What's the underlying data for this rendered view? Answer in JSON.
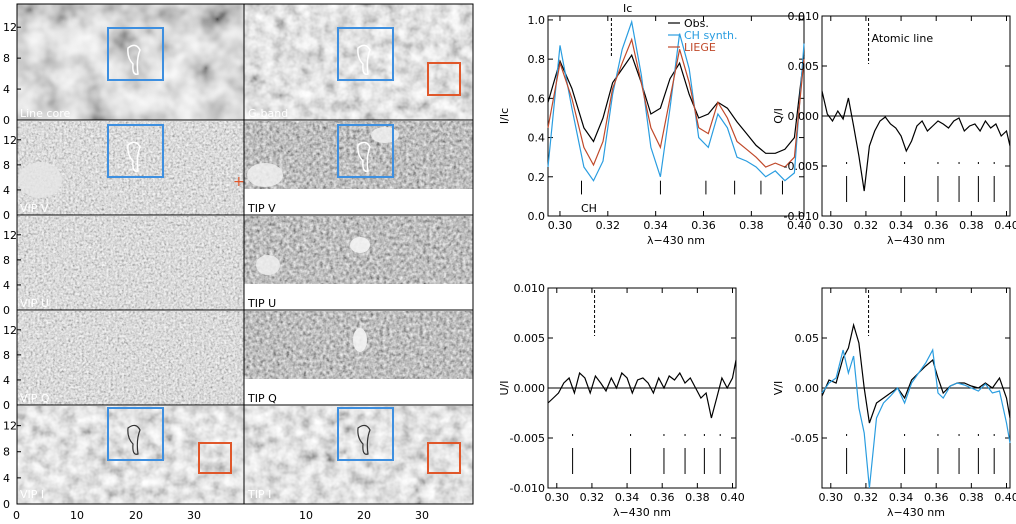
{
  "panels": {
    "left_column": [
      "Line core",
      "VIP V",
      "VIP U",
      "VIP Q",
      "VIP I"
    ],
    "right_column": [
      "G-band",
      "TIP V",
      "TIP U",
      "TIP Q",
      "TIP I"
    ],
    "y_ticks": [
      "0",
      "4",
      "8",
      "12"
    ],
    "x_ticks": [
      "0",
      "10",
      "20",
      "30",
      "10",
      "20",
      "30"
    ]
  },
  "colors": {
    "blue_box": "#3d8fe0",
    "red_box": "#e0572a",
    "obs": "#000000",
    "ch_synth": "#2a9de0",
    "liege": "#c0492a"
  },
  "chart_data": [
    {
      "type": "line",
      "id": "stokes-I",
      "xlabel": "λ−430 nm",
      "ylabel": "I/Ic",
      "xlim": [
        0.295,
        0.402
      ],
      "ylim": [
        0.0,
        1.02
      ],
      "x_ticks": [
        "0.30",
        "0.32",
        "0.34",
        "0.36",
        "0.38",
        "0.40"
      ],
      "y_ticks": [
        "0.0",
        "0.2",
        "0.4",
        "0.6",
        "0.8",
        "1.0"
      ],
      "top_marker": "Ic",
      "annotations": [
        "CH"
      ],
      "legend": [
        "Obs.",
        "CH synth.",
        "LIEGE"
      ],
      "legend_position": "top-right",
      "line_marks_x": [
        0.309,
        0.342,
        0.361,
        0.373,
        0.384,
        0.393
      ],
      "series": [
        {
          "name": "Obs.",
          "x": [
            0.295,
            0.3,
            0.305,
            0.31,
            0.314,
            0.318,
            0.322,
            0.326,
            0.33,
            0.334,
            0.338,
            0.342,
            0.346,
            0.35,
            0.354,
            0.358,
            0.362,
            0.366,
            0.37,
            0.374,
            0.378,
            0.382,
            0.386,
            0.39,
            0.394,
            0.398,
            0.402
          ],
          "y": [
            0.58,
            0.79,
            0.65,
            0.45,
            0.38,
            0.5,
            0.68,
            0.75,
            0.82,
            0.68,
            0.52,
            0.55,
            0.7,
            0.78,
            0.62,
            0.5,
            0.52,
            0.58,
            0.55,
            0.48,
            0.42,
            0.36,
            0.32,
            0.32,
            0.34,
            0.4,
            0.82
          ]
        },
        {
          "name": "CH synth.",
          "x": [
            0.295,
            0.3,
            0.305,
            0.31,
            0.314,
            0.318,
            0.322,
            0.326,
            0.33,
            0.334,
            0.338,
            0.342,
            0.346,
            0.35,
            0.354,
            0.358,
            0.362,
            0.366,
            0.37,
            0.374,
            0.378,
            0.382,
            0.386,
            0.39,
            0.394,
            0.398,
            0.402
          ],
          "y": [
            0.25,
            0.87,
            0.55,
            0.25,
            0.18,
            0.28,
            0.62,
            0.85,
            0.99,
            0.72,
            0.35,
            0.2,
            0.55,
            0.93,
            0.75,
            0.4,
            0.35,
            0.52,
            0.45,
            0.3,
            0.28,
            0.25,
            0.2,
            0.23,
            0.18,
            0.22,
            0.88
          ]
        },
        {
          "name": "LIEGE",
          "x": [
            0.295,
            0.3,
            0.305,
            0.31,
            0.314,
            0.318,
            0.322,
            0.326,
            0.33,
            0.334,
            0.338,
            0.342,
            0.346,
            0.35,
            0.354,
            0.358,
            0.362,
            0.366,
            0.37,
            0.374,
            0.378,
            0.382,
            0.386,
            0.39,
            0.394,
            0.398,
            0.402
          ],
          "y": [
            0.45,
            0.78,
            0.6,
            0.35,
            0.26,
            0.38,
            0.65,
            0.78,
            0.9,
            0.68,
            0.45,
            0.35,
            0.6,
            0.85,
            0.68,
            0.45,
            0.42,
            0.58,
            0.5,
            0.38,
            0.34,
            0.3,
            0.25,
            0.27,
            0.25,
            0.3,
            0.8
          ]
        }
      ]
    },
    {
      "type": "line",
      "id": "stokes-Q",
      "xlabel": "λ−430 nm",
      "ylabel": "Q/I",
      "xlim": [
        0.295,
        0.402
      ],
      "ylim": [
        -0.01,
        0.01
      ],
      "x_ticks": [
        "0.30",
        "0.32",
        "0.34",
        "0.36",
        "0.38",
        "0.40"
      ],
      "y_ticks": [
        "-0.010",
        "-0.005",
        "0.000",
        "0.005",
        "0.010"
      ],
      "annotations": [
        "Atomic line"
      ],
      "line_marks_x": [
        0.309,
        0.342,
        0.361,
        0.373,
        0.384,
        0.393
      ],
      "series": [
        {
          "name": "Obs.",
          "x": [
            0.295,
            0.298,
            0.301,
            0.304,
            0.307,
            0.31,
            0.313,
            0.316,
            0.319,
            0.322,
            0.325,
            0.328,
            0.331,
            0.334,
            0.337,
            0.34,
            0.343,
            0.346,
            0.349,
            0.352,
            0.355,
            0.358,
            0.361,
            0.364,
            0.367,
            0.37,
            0.373,
            0.376,
            0.379,
            0.382,
            0.385,
            0.388,
            0.391,
            0.394,
            0.397,
            0.4,
            0.402
          ],
          "y": [
            0.0025,
            0.0002,
            -0.0005,
            0.0005,
            -0.0003,
            0.0018,
            -0.001,
            -0.004,
            -0.0075,
            -0.003,
            -0.0015,
            -0.0005,
            -0.0001,
            -0.0008,
            -0.0012,
            -0.002,
            -0.0035,
            -0.0025,
            -0.001,
            -0.0005,
            -0.0015,
            -0.001,
            -0.0005,
            -0.0008,
            -0.0012,
            -0.0005,
            -0.0002,
            -0.0015,
            -0.001,
            -0.0008,
            -0.0015,
            -0.0005,
            -0.0012,
            -0.0008,
            -0.002,
            -0.0015,
            -0.003
          ]
        }
      ]
    },
    {
      "type": "line",
      "id": "stokes-U",
      "xlabel": "λ−430 nm",
      "ylabel": "U/I",
      "xlim": [
        0.295,
        0.402
      ],
      "ylim": [
        -0.01,
        0.01
      ],
      "x_ticks": [
        "0.30",
        "0.32",
        "0.34",
        "0.36",
        "0.38",
        "0.40"
      ],
      "y_ticks": [
        "-0.010",
        "-0.005",
        "0.000",
        "0.005",
        "0.010"
      ],
      "line_marks_x": [
        0.309,
        0.342,
        0.361,
        0.373,
        0.384,
        0.393
      ],
      "series": [
        {
          "name": "Obs.",
          "x": [
            0.295,
            0.298,
            0.301,
            0.304,
            0.307,
            0.31,
            0.313,
            0.316,
            0.319,
            0.322,
            0.325,
            0.328,
            0.331,
            0.334,
            0.337,
            0.34,
            0.343,
            0.346,
            0.349,
            0.352,
            0.355,
            0.358,
            0.361,
            0.364,
            0.367,
            0.37,
            0.373,
            0.376,
            0.379,
            0.382,
            0.385,
            0.388,
            0.391,
            0.394,
            0.397,
            0.4,
            0.402
          ],
          "y": [
            -0.0015,
            -0.001,
            -0.0005,
            0.0005,
            0.001,
            -0.0005,
            0.0015,
            0.001,
            -0.0005,
            0.0012,
            0.0005,
            -0.0003,
            0.001,
            0.0,
            0.0015,
            0.001,
            -0.0005,
            0.0008,
            0.001,
            0.0005,
            -0.0005,
            0.001,
            0.0,
            0.0012,
            0.0008,
            0.0015,
            0.0005,
            0.001,
            0.0,
            -0.001,
            -0.0005,
            -0.003,
            -0.001,
            0.001,
            0.0,
            0.001,
            0.0028
          ]
        }
      ]
    },
    {
      "type": "line",
      "id": "stokes-V",
      "xlabel": "λ−430 nm",
      "ylabel": "V/I",
      "xlim": [
        0.295,
        0.402
      ],
      "ylim": [
        -0.1,
        0.1
      ],
      "x_ticks": [
        "0.30",
        "0.32",
        "0.34",
        "0.36",
        "0.38",
        "0.40"
      ],
      "y_ticks": [
        "-0.05",
        "0.00",
        "0.05"
      ],
      "line_marks_x": [
        0.309,
        0.342,
        0.361,
        0.373,
        0.384,
        0.393
      ],
      "series": [
        {
          "name": "Obs.",
          "x": [
            0.295,
            0.299,
            0.303,
            0.307,
            0.31,
            0.313,
            0.316,
            0.319,
            0.322,
            0.326,
            0.33,
            0.334,
            0.338,
            0.342,
            0.346,
            0.35,
            0.354,
            0.358,
            0.361,
            0.364,
            0.368,
            0.372,
            0.376,
            0.38,
            0.384,
            0.388,
            0.392,
            0.396,
            0.4,
            0.402
          ],
          "y": [
            -0.008,
            0.008,
            0.005,
            0.03,
            0.04,
            0.063,
            0.045,
            0.0,
            -0.035,
            -0.015,
            -0.01,
            -0.005,
            0.0,
            -0.01,
            0.008,
            0.015,
            0.022,
            0.028,
            0.01,
            -0.005,
            0.002,
            0.005,
            0.005,
            0.002,
            0.0,
            0.005,
            0.0,
            0.01,
            -0.01,
            -0.03
          ]
        },
        {
          "name": "CH synth.",
          "x": [
            0.295,
            0.299,
            0.303,
            0.307,
            0.31,
            0.313,
            0.316,
            0.319,
            0.322,
            0.326,
            0.33,
            0.334,
            0.338,
            0.342,
            0.346,
            0.35,
            0.354,
            0.358,
            0.361,
            0.364,
            0.368,
            0.372,
            0.376,
            0.38,
            0.384,
            0.388,
            0.392,
            0.396,
            0.4,
            0.402
          ],
          "y": [
            -0.005,
            0.005,
            0.01,
            0.038,
            0.015,
            0.032,
            -0.02,
            -0.045,
            -0.1,
            -0.03,
            -0.015,
            -0.008,
            0.0,
            -0.015,
            0.005,
            0.015,
            0.025,
            0.038,
            -0.005,
            -0.01,
            0.002,
            0.005,
            0.003,
            0.0,
            -0.003,
            0.004,
            -0.005,
            -0.003,
            -0.035,
            -0.055
          ]
        }
      ]
    }
  ]
}
